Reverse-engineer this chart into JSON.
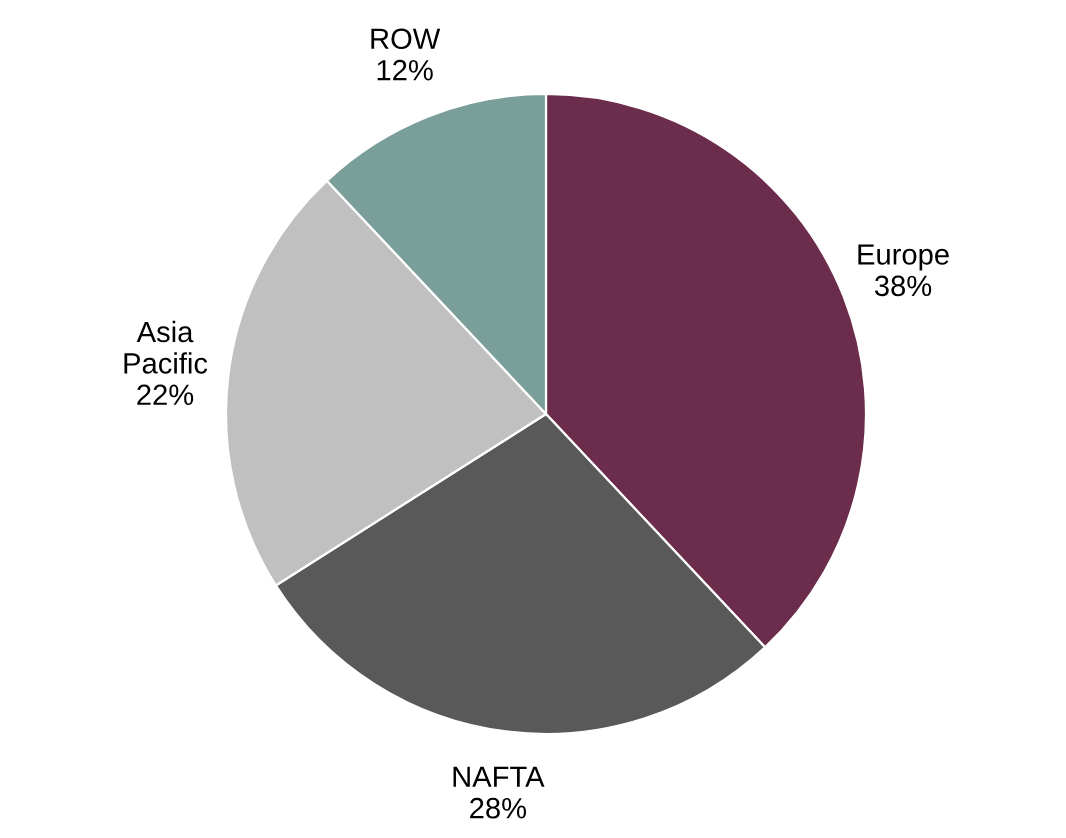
{
  "chart_data": {
    "type": "pie",
    "categories": [
      "Europe",
      "NAFTA",
      "Asia\nPacific",
      "ROW"
    ],
    "values": [
      38,
      28,
      22,
      12
    ],
    "colors": [
      "#6b2d4b",
      "#595959",
      "#c0c0c0",
      "#7a9e99"
    ],
    "value_labels": [
      "38%",
      "28%",
      "22%",
      "12%"
    ]
  }
}
